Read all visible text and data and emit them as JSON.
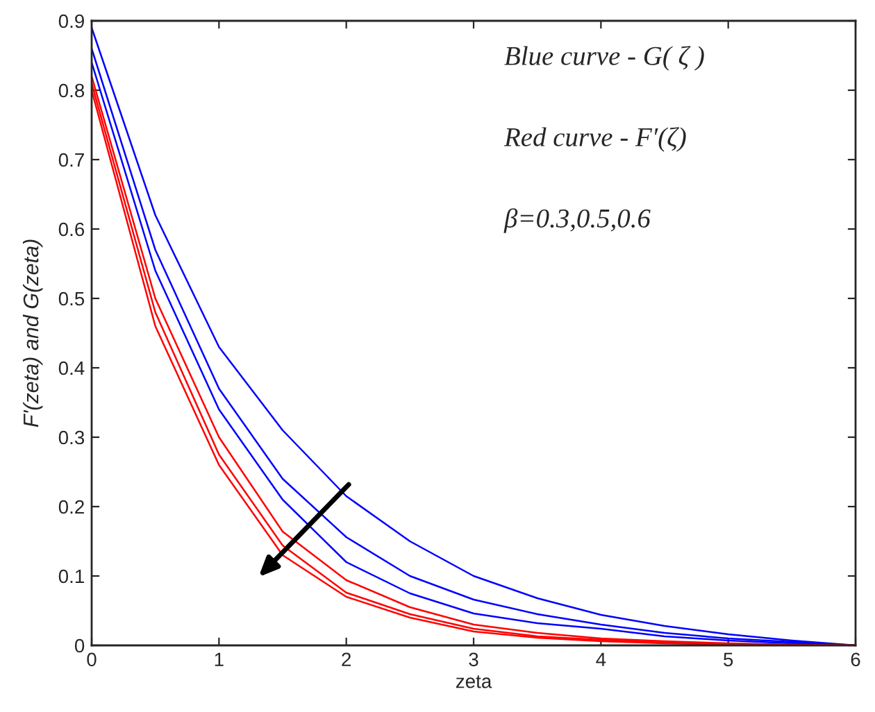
{
  "chart_data": {
    "type": "line",
    "x": [
      0,
      0.5,
      1,
      1.5,
      2,
      2.5,
      3,
      3.5,
      4,
      4.5,
      5,
      5.5,
      6
    ],
    "series": [
      {
        "color": "#0000ff",
        "values": [
          0.89,
          0.62,
          0.43,
          0.31,
          0.215,
          0.15,
          0.1,
          0.068,
          0.044,
          0.028,
          0.016,
          0.007,
          0
        ]
      },
      {
        "color": "#0000ff",
        "values": [
          0.86,
          0.57,
          0.37,
          0.24,
          0.156,
          0.1,
          0.066,
          0.045,
          0.03,
          0.018,
          0.01,
          0.005,
          0
        ]
      },
      {
        "color": "#0000ff",
        "values": [
          0.84,
          0.54,
          0.34,
          0.21,
          0.12,
          0.075,
          0.046,
          0.032,
          0.024,
          0.013,
          0.007,
          0.003,
          0
        ]
      },
      {
        "color": "#ff0000",
        "values": [
          0.82,
          0.5,
          0.3,
          0.164,
          0.094,
          0.055,
          0.03,
          0.018,
          0.01,
          0.006,
          0.003,
          0.001,
          0
        ]
      },
      {
        "color": "#ff0000",
        "values": [
          0.81,
          0.48,
          0.275,
          0.144,
          0.076,
          0.045,
          0.024,
          0.013,
          0.008,
          0.004,
          0.002,
          0.001,
          0
        ]
      },
      {
        "color": "#ff0000",
        "values": [
          0.8,
          0.46,
          0.26,
          0.13,
          0.07,
          0.04,
          0.02,
          0.011,
          0.006,
          0.003,
          0.001,
          0,
          0
        ]
      }
    ],
    "xlabel": "zeta",
    "ylabel": "F'(zeta) and G(zeta)",
    "annotations": [
      "Blue curve - G( ζ )",
      "Red curve - F′(ζ)",
      "β=0.3,0.5,0.6"
    ],
    "xlim": [
      0,
      6
    ],
    "ylim": [
      0,
      0.9
    ],
    "xticks": [
      0,
      1,
      2,
      3,
      4,
      5,
      6
    ],
    "yticks": [
      0,
      0.1,
      0.2,
      0.3,
      0.4,
      0.5,
      0.6,
      0.7,
      0.8,
      0.9
    ],
    "grid": false,
    "legend": false,
    "marker": "none",
    "line_style": "solid"
  }
}
